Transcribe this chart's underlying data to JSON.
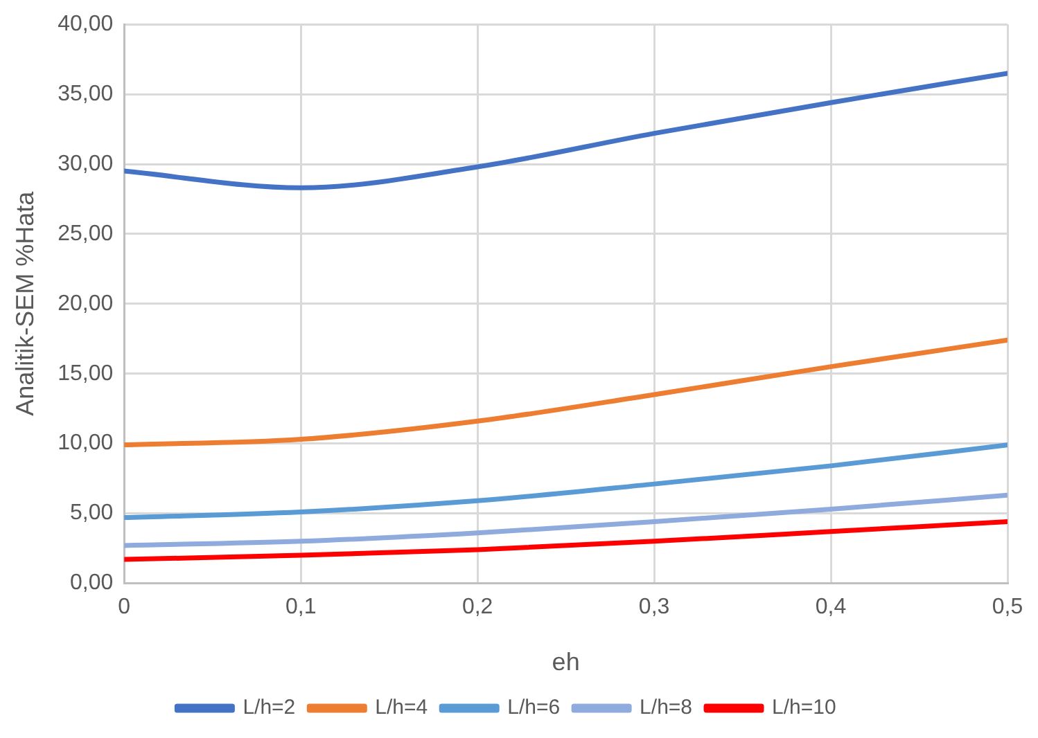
{
  "chart_data": {
    "type": "line",
    "xlabel": "eh",
    "ylabel": "Analitik-SEM %Hata",
    "x": [
      0,
      0.1,
      0.2,
      0.3,
      0.4,
      0.5
    ],
    "series": [
      {
        "name": "L/h=2",
        "color": "#4472c4",
        "values": [
          29.5,
          28.3,
          29.8,
          32.2,
          34.4,
          36.5
        ]
      },
      {
        "name": "L/h=4",
        "color": "#ed7d31",
        "values": [
          9.9,
          10.3,
          11.6,
          13.5,
          15.5,
          17.4
        ]
      },
      {
        "name": "L/h=6",
        "color": "#5b9bd5",
        "values": [
          4.7,
          5.1,
          5.9,
          7.1,
          8.4,
          9.9
        ]
      },
      {
        "name": "L/h=8",
        "color": "#8faadc",
        "values": [
          2.7,
          3.0,
          3.6,
          4.4,
          5.3,
          6.3
        ]
      },
      {
        "name": "L/h=10",
        "color": "#ff0000",
        "values": [
          1.7,
          2.0,
          2.4,
          3.0,
          3.7,
          4.4
        ]
      }
    ],
    "xlim": [
      0,
      0.5
    ],
    "xticks": [
      0,
      {
        "value": 0.1,
        "label": "0,1"
      },
      {
        "value": 0.2,
        "label": "0,2"
      },
      {
        "value": 0.3,
        "label": "0,3"
      },
      {
        "value": 0.4,
        "label": "0,4"
      },
      {
        "value": 0.5,
        "label": "0,5"
      }
    ],
    "ylim": [
      0,
      40
    ],
    "yticks": [
      {
        "value": 0,
        "label": "0,00"
      },
      {
        "value": 5,
        "label": "5,00"
      },
      {
        "value": 10,
        "label": "10,00"
      },
      {
        "value": 15,
        "label": "15,00"
      },
      {
        "value": 20,
        "label": "20,00"
      },
      {
        "value": 25,
        "label": "25,00"
      },
      {
        "value": 30,
        "label": "30,00"
      },
      {
        "value": 35,
        "label": "35,00"
      },
      {
        "value": 40,
        "label": "40,00"
      }
    ],
    "grid": true,
    "legend": "bottom",
    "marker": "none",
    "line_style": "solid"
  }
}
